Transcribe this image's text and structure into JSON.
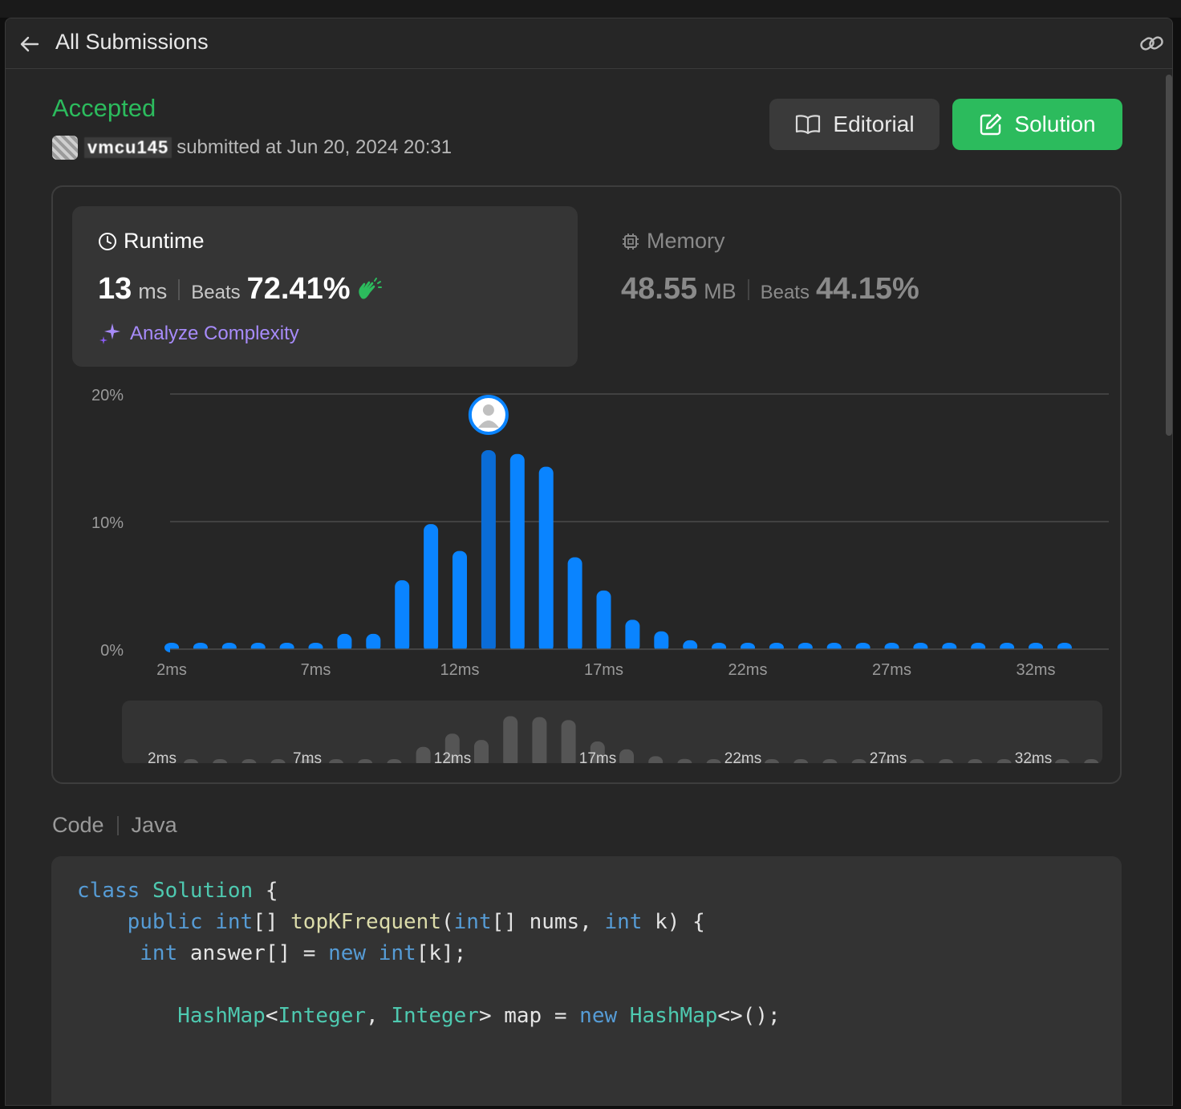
{
  "header": {
    "title": "All Submissions",
    "back_icon": "arrow-left-icon",
    "link_icon": "link-icon"
  },
  "submission": {
    "status": "Accepted",
    "username": "vmcu145",
    "submitted_text": "submitted at Jun 20, 2024 20:31"
  },
  "buttons": {
    "editorial": "Editorial",
    "solution": "Solution"
  },
  "runtime": {
    "title": "Runtime",
    "value": "13",
    "unit": "ms",
    "beats_label": "Beats",
    "beats_value": "72.41%",
    "analyze": "Analyze Complexity"
  },
  "memory": {
    "title": "Memory",
    "value": "48.55",
    "unit": "MB",
    "beats_label": "Beats",
    "beats_value": "44.15%"
  },
  "colors": {
    "accepted": "#2cbb5d",
    "bar": "#0a84ff",
    "bar_selected": "#0a6cd6",
    "analyze": "#a78bfa"
  },
  "chart_data": {
    "type": "bar",
    "x": [
      2,
      3,
      4,
      5,
      6,
      7,
      8,
      9,
      10,
      11,
      12,
      13,
      14,
      15,
      16,
      17,
      18,
      19,
      20,
      21,
      22,
      23,
      24,
      25,
      26,
      27,
      28,
      29,
      30,
      31,
      32,
      33
    ],
    "values": [
      0.5,
      0.5,
      0.5,
      0.5,
      0.5,
      0.5,
      1.2,
      1.2,
      5.4,
      9.8,
      7.7,
      15.6,
      15.3,
      14.3,
      7.2,
      4.6,
      2.3,
      1.4,
      0.7,
      0.5,
      0.5,
      0.5,
      0.5,
      0.5,
      0.5,
      0.5,
      0.5,
      0.5,
      0.5,
      0.5,
      0.5,
      0.5
    ],
    "selected_x": 13,
    "ylim": [
      0,
      20
    ],
    "yticks": [
      "0%",
      "10%",
      "20%"
    ],
    "xticks": [
      "2ms",
      "7ms",
      "12ms",
      "17ms",
      "22ms",
      "27ms",
      "32ms"
    ],
    "overview_ticks": [
      "2ms",
      "7ms",
      "12ms",
      "17ms",
      "22ms",
      "27ms",
      "32ms"
    ],
    "grid": true
  },
  "code": {
    "heading": "Code",
    "language": "Java",
    "lines": [
      [
        [
          "kw",
          "class"
        ],
        [
          "t",
          " "
        ],
        [
          "ty",
          "Solution"
        ],
        [
          "t",
          " {"
        ]
      ],
      [
        [
          "t",
          "    "
        ],
        [
          "kw",
          "public"
        ],
        [
          "t",
          " "
        ],
        [
          "kw",
          "int"
        ],
        [
          "t",
          "[] "
        ],
        [
          "fn",
          "topKFrequent"
        ],
        [
          "t",
          "("
        ],
        [
          "kw",
          "int"
        ],
        [
          "t",
          "[] nums, "
        ],
        [
          "kw",
          "int"
        ],
        [
          "t",
          " k) {"
        ]
      ],
      [
        [
          "t",
          "     "
        ],
        [
          "kw",
          "int"
        ],
        [
          "t",
          " answer[] = "
        ],
        [
          "kw",
          "new"
        ],
        [
          "t",
          " "
        ],
        [
          "kw",
          "int"
        ],
        [
          "t",
          "[k];"
        ]
      ],
      [
        [
          "t",
          ""
        ]
      ],
      [
        [
          "t",
          "        "
        ],
        [
          "ty",
          "HashMap"
        ],
        [
          "t",
          "<"
        ],
        [
          "ty",
          "Integer"
        ],
        [
          "t",
          ", "
        ],
        [
          "ty",
          "Integer"
        ],
        [
          "t",
          "> map = "
        ],
        [
          "kw",
          "new"
        ],
        [
          "t",
          " "
        ],
        [
          "ty",
          "HashMap"
        ],
        [
          "t",
          "<>();"
        ]
      ]
    ]
  }
}
